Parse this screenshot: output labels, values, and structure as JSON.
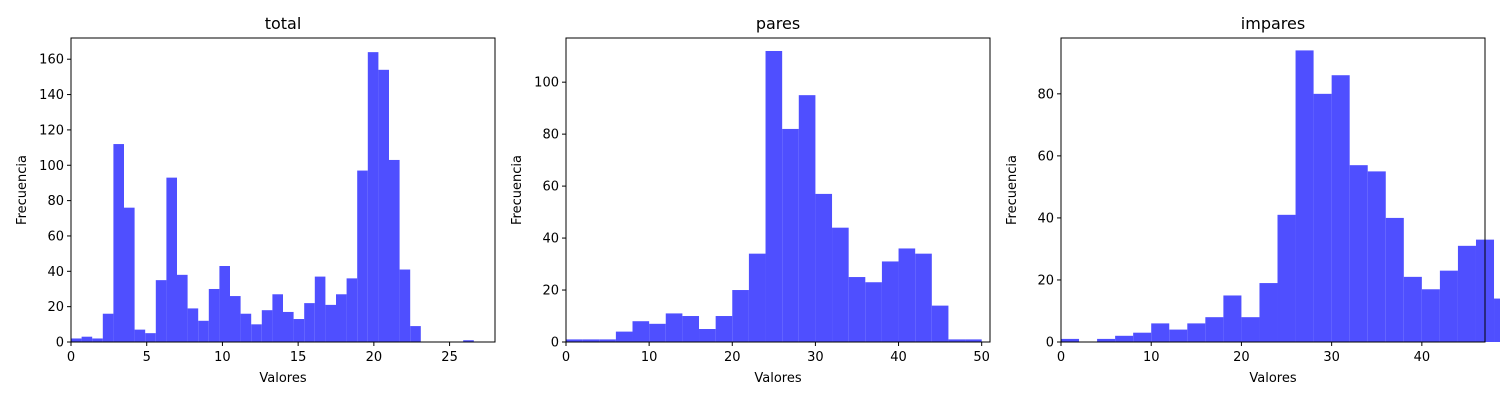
{
  "figure": {
    "bar_color": "#4b4bff",
    "axis_color": "#000000"
  },
  "chart_data": [
    {
      "type": "bar",
      "title": "total",
      "xlabel": "Valores",
      "ylabel": "Frecuencia",
      "xlim": [
        0,
        28
      ],
      "ylim": [
        0,
        172
      ],
      "xticks": [
        0,
        5,
        10,
        15,
        20,
        25
      ],
      "yticks": [
        0,
        20,
        40,
        60,
        80,
        100,
        120,
        140,
        160
      ],
      "bins": {
        "start": 0,
        "width": 0.7,
        "values": [
          2,
          3,
          2,
          16,
          112,
          76,
          7,
          5,
          35,
          93,
          38,
          19,
          12,
          30,
          43,
          26,
          16,
          10,
          18,
          27,
          17,
          13,
          22,
          37,
          21,
          27,
          36,
          97,
          164,
          154,
          103,
          41,
          9,
          0,
          0,
          0,
          0,
          1
        ]
      }
    },
    {
      "type": "bar",
      "title": "pares",
      "xlabel": "Valores",
      "ylabel": "Frecuencia",
      "xlim": [
        0,
        51
      ],
      "ylim": [
        0,
        117
      ],
      "xticks": [
        0,
        10,
        20,
        30,
        40,
        50
      ],
      "yticks": [
        0,
        20,
        40,
        60,
        80,
        100
      ],
      "bins": {
        "start": 0,
        "width": 2,
        "values": [
          1,
          1,
          1,
          4,
          8,
          7,
          11,
          10,
          5,
          10,
          20,
          34,
          112,
          82,
          95,
          57,
          44,
          25,
          23,
          31,
          36,
          34,
          14,
          1,
          1
        ]
      }
    },
    {
      "type": "bar",
      "title": "impares",
      "xlabel": "Valores",
      "ylabel": "Frecuencia",
      "xlim": [
        0,
        47
      ],
      "ylim": [
        0,
        98
      ],
      "xticks": [
        0,
        10,
        20,
        30,
        40
      ],
      "yticks": [
        0,
        20,
        40,
        60,
        80
      ],
      "bins": {
        "start": 0,
        "width": 2,
        "values": [
          1,
          0,
          1,
          2,
          3,
          6,
          4,
          6,
          8,
          15,
          8,
          19,
          41,
          94,
          80,
          86,
          57,
          55,
          40,
          21,
          17,
          23,
          31,
          33,
          14
        ]
      }
    }
  ]
}
